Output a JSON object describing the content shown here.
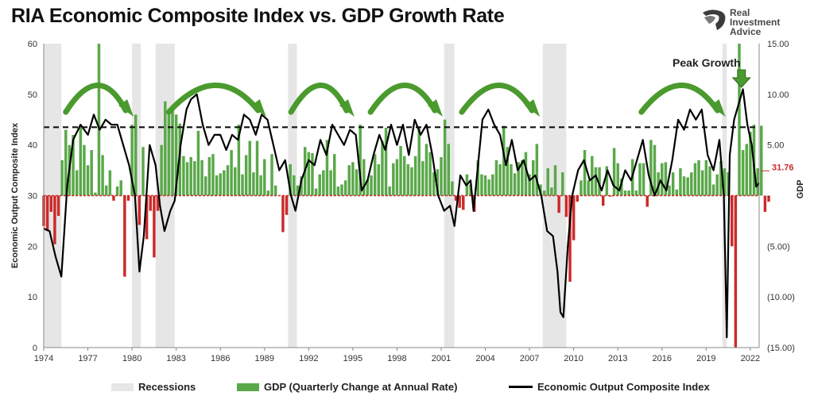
{
  "title": "RIA Economic Composite Index vs. GDP Growth Rate",
  "logo": {
    "line1": "Real",
    "line2": "Investment",
    "line3": "Advice"
  },
  "legend": {
    "recessions": "Recessions",
    "gdp": "GDP (Quarterly Change at Annual Rate)",
    "index": "Economic Output Composite Index"
  },
  "colors": {
    "gdp_pos": "#5aa84a",
    "gdp_neg": "#cc2a2a",
    "index_line": "#000000",
    "recession": "#e6e6e6",
    "arrow": "#4a9a2e",
    "last_value": "#cc2a2a"
  },
  "chart_data": {
    "type": "bar+line",
    "title": "RIA Economic Composite Index vs. GDP Growth Rate",
    "ylabel_left": "Economic Output Composite Index",
    "ylabel_right": "GDP",
    "ylim_left": [
      0,
      60
    ],
    "ylim_right": [
      -15,
      15
    ],
    "y_ticks_left": [
      "0",
      "10",
      "20",
      "30",
      "40",
      "50",
      "60"
    ],
    "y_ticks_right": [
      "15.00",
      "10.00",
      "5.00",
      "-",
      "(5.00)",
      "(10.00)",
      "(15.00)"
    ],
    "x_ticks": [
      "1974",
      "1977",
      "1980",
      "1983",
      "1986",
      "1989",
      "1992",
      "1995",
      "1998",
      "2001",
      "2004",
      "2007",
      "2010",
      "2013",
      "2016",
      "2019",
      "2022"
    ],
    "xlim": [
      1974,
      2022.6
    ],
    "threshold_line": 43.5,
    "last_value_label": "31.76",
    "annotation": "Peak Growth",
    "recessions": [
      [
        1974.0,
        1975.2
      ],
      [
        1980.0,
        1980.6
      ],
      [
        1981.6,
        1982.9
      ],
      [
        1990.6,
        1991.2
      ],
      [
        2001.2,
        2001.9
      ],
      [
        2007.9,
        2009.5
      ],
      [
        2020.1,
        2020.4
      ]
    ],
    "growth_arrows": [
      [
        1975.5,
        1980.0
      ],
      [
        1982.5,
        1989.0
      ],
      [
        1990.8,
        1995.0
      ],
      [
        1996.2,
        2001.0
      ],
      [
        2002.4,
        2007.6
      ],
      [
        2014.6,
        2020.2
      ]
    ],
    "index_series": {
      "name": "Economic Output Composite Index",
      "points": [
        [
          1974.0,
          23.5
        ],
        [
          1974.4,
          23
        ],
        [
          1974.8,
          18
        ],
        [
          1975.2,
          14
        ],
        [
          1975.6,
          32
        ],
        [
          1976.0,
          41
        ],
        [
          1976.5,
          44
        ],
        [
          1977.0,
          42
        ],
        [
          1977.4,
          46
        ],
        [
          1977.8,
          43
        ],
        [
          1978.2,
          45
        ],
        [
          1978.6,
          44
        ],
        [
          1979.0,
          44
        ],
        [
          1979.4,
          40
        ],
        [
          1979.8,
          36
        ],
        [
          1980.2,
          30
        ],
        [
          1980.5,
          15
        ],
        [
          1980.8,
          22
        ],
        [
          1981.2,
          40
        ],
        [
          1981.6,
          36
        ],
        [
          1981.9,
          28
        ],
        [
          1982.2,
          23
        ],
        [
          1982.6,
          27
        ],
        [
          1982.9,
          29
        ],
        [
          1983.3,
          40
        ],
        [
          1983.7,
          47
        ],
        [
          1984.0,
          49
        ],
        [
          1984.4,
          50
        ],
        [
          1984.8,
          44
        ],
        [
          1985.2,
          40
        ],
        [
          1985.6,
          42
        ],
        [
          1986.0,
          42
        ],
        [
          1986.4,
          39
        ],
        [
          1986.8,
          42
        ],
        [
          1987.2,
          41
        ],
        [
          1987.6,
          46
        ],
        [
          1988.0,
          45
        ],
        [
          1988.4,
          42
        ],
        [
          1988.8,
          46
        ],
        [
          1989.2,
          45
        ],
        [
          1989.6,
          40
        ],
        [
          1990.0,
          35
        ],
        [
          1990.4,
          37
        ],
        [
          1990.8,
          30
        ],
        [
          1991.1,
          27
        ],
        [
          1991.5,
          33
        ],
        [
          1992.0,
          37
        ],
        [
          1992.4,
          36
        ],
        [
          1992.8,
          41
        ],
        [
          1993.2,
          38
        ],
        [
          1993.6,
          44
        ],
        [
          1994.0,
          42
        ],
        [
          1994.4,
          40
        ],
        [
          1994.8,
          43
        ],
        [
          1995.2,
          42
        ],
        [
          1995.6,
          31
        ],
        [
          1996.0,
          33
        ],
        [
          1996.4,
          38
        ],
        [
          1996.8,
          42
        ],
        [
          1997.2,
          39
        ],
        [
          1997.6,
          44
        ],
        [
          1998.0,
          40
        ],
        [
          1998.4,
          44
        ],
        [
          1998.8,
          38
        ],
        [
          1999.2,
          45
        ],
        [
          1999.6,
          42
        ],
        [
          2000.0,
          44
        ],
        [
          2000.4,
          38
        ],
        [
          2000.8,
          30
        ],
        [
          2001.2,
          27
        ],
        [
          2001.6,
          28
        ],
        [
          2001.9,
          24
        ],
        [
          2002.3,
          34
        ],
        [
          2002.7,
          32
        ],
        [
          2003.0,
          33
        ],
        [
          2003.2,
          27
        ],
        [
          2003.5,
          36
        ],
        [
          2003.8,
          45
        ],
        [
          2004.2,
          47
        ],
        [
          2004.6,
          44
        ],
        [
          2005.0,
          42
        ],
        [
          2005.4,
          36
        ],
        [
          2005.8,
          41
        ],
        [
          2006.2,
          35
        ],
        [
          2006.6,
          37
        ],
        [
          2007.0,
          33
        ],
        [
          2007.4,
          34
        ],
        [
          2007.8,
          30
        ],
        [
          2008.2,
          23
        ],
        [
          2008.6,
          22
        ],
        [
          2008.9,
          15
        ],
        [
          2009.1,
          7
        ],
        [
          2009.3,
          6
        ],
        [
          2009.6,
          20
        ],
        [
          2009.9,
          30
        ],
        [
          2010.3,
          35
        ],
        [
          2010.7,
          37
        ],
        [
          2011.1,
          33
        ],
        [
          2011.5,
          34
        ],
        [
          2011.9,
          31
        ],
        [
          2012.3,
          35
        ],
        [
          2012.7,
          32
        ],
        [
          2013.1,
          31
        ],
        [
          2013.5,
          35
        ],
        [
          2013.9,
          33
        ],
        [
          2014.3,
          37
        ],
        [
          2014.7,
          41
        ],
        [
          2015.1,
          34
        ],
        [
          2015.5,
          30
        ],
        [
          2015.9,
          33
        ],
        [
          2016.3,
          31
        ],
        [
          2016.7,
          37
        ],
        [
          2017.1,
          45
        ],
        [
          2017.5,
          43
        ],
        [
          2017.9,
          47
        ],
        [
          2018.3,
          45
        ],
        [
          2018.7,
          47
        ],
        [
          2019.1,
          38
        ],
        [
          2019.5,
          35
        ],
        [
          2019.9,
          41
        ],
        [
          2020.2,
          30
        ],
        [
          2020.4,
          2
        ],
        [
          2020.6,
          38
        ],
        [
          2020.9,
          45
        ],
        [
          2021.2,
          48
        ],
        [
          2021.5,
          51
        ],
        [
          2021.8,
          44
        ],
        [
          2022.1,
          40
        ],
        [
          2022.4,
          31.76
        ],
        [
          2022.6,
          32.5
        ]
      ]
    },
    "gdp_series": {
      "name": "GDP (Quarterly Change at Annual Rate)",
      "values": [
        -3.0,
        -3.5,
        -1.6,
        -4.8,
        -2.0,
        3.5,
        6.5,
        5.0,
        6.0,
        2.5,
        7.0,
        5.0,
        3.0,
        4.5,
        0.3,
        15.0,
        4.0,
        1.0,
        2.5,
        -0.5,
        0.9,
        1.5,
        -8.0,
        -0.5,
        7.0,
        8.0,
        -2.9,
        4.8,
        -4.3,
        -1.5,
        -6.1,
        -1.5,
        5.0,
        9.3,
        8.1,
        8.5,
        8.0,
        7.1,
        3.9,
        3.3,
        3.8,
        3.4,
        6.4,
        3.5,
        1.9,
        3.8,
        4.1,
        2.0,
        2.2,
        2.5,
        3.0,
        4.5,
        2.8,
        7.0,
        2.1,
        4.0,
        5.4,
        2.3,
        5.4,
        2.0,
        3.6,
        0.5,
        4.1,
        1.0,
        0.0,
        -3.6,
        -1.9,
        3.1,
        2.0,
        1.0,
        1.9,
        4.8,
        4.3,
        4.2,
        0.7,
        2.1,
        2.5,
        5.5,
        2.5,
        4.1,
        0.9,
        1.1,
        1.5,
        3.0,
        3.3,
        2.6,
        7.0,
        3.6,
        1.6,
        2.0,
        4.1,
        3.1,
        5.4,
        6.7,
        0.9,
        3.2,
        3.6,
        4.9,
        3.9,
        3.1,
        2.8,
        3.9,
        6.8,
        3.4,
        5.1,
        4.3,
        2.3,
        2.6,
        3.8,
        7.5,
        5.1,
        1.4,
        -0.5,
        -1.2,
        -1.4,
        2.1,
        1.1,
        -1.6,
        3.5,
        2.1,
        2.0,
        1.6,
        2.1,
        3.5,
        3.1,
        6.9,
        4.8,
        3.1,
        2.2,
        3.3,
        3.5,
        4.3,
        2.1,
        3.5,
        5.1,
        1.1,
        0.5,
        2.7,
        0.8,
        3.0,
        -1.7,
        2.3,
        -2.1,
        -8.5,
        -4.4,
        -0.6,
        1.5,
        4.5,
        1.5,
        3.9,
        2.8,
        2.8,
        -1.0,
        2.9,
        -0.1,
        4.7,
        3.2,
        1.7,
        0.5,
        0.5,
        3.6,
        0.5,
        3.2,
        3.2,
        -1.1,
        5.5,
        5.0,
        2.3,
        3.2,
        3.3,
        1.0,
        2.3,
        0.6,
        2.7,
        1.9,
        1.8,
        2.3,
        3.2,
        3.5,
        2.5,
        3.5,
        2.9,
        1.1,
        2.1,
        3.4,
        2.7,
        2.3,
        -5.0,
        -29.9,
        35.3,
        4.5,
        5.1,
        6.3,
        7.0,
        2.7,
        6.9,
        -1.6,
        -0.6
      ],
      "x_start": 1974.0,
      "x_step": 0.25
    }
  }
}
